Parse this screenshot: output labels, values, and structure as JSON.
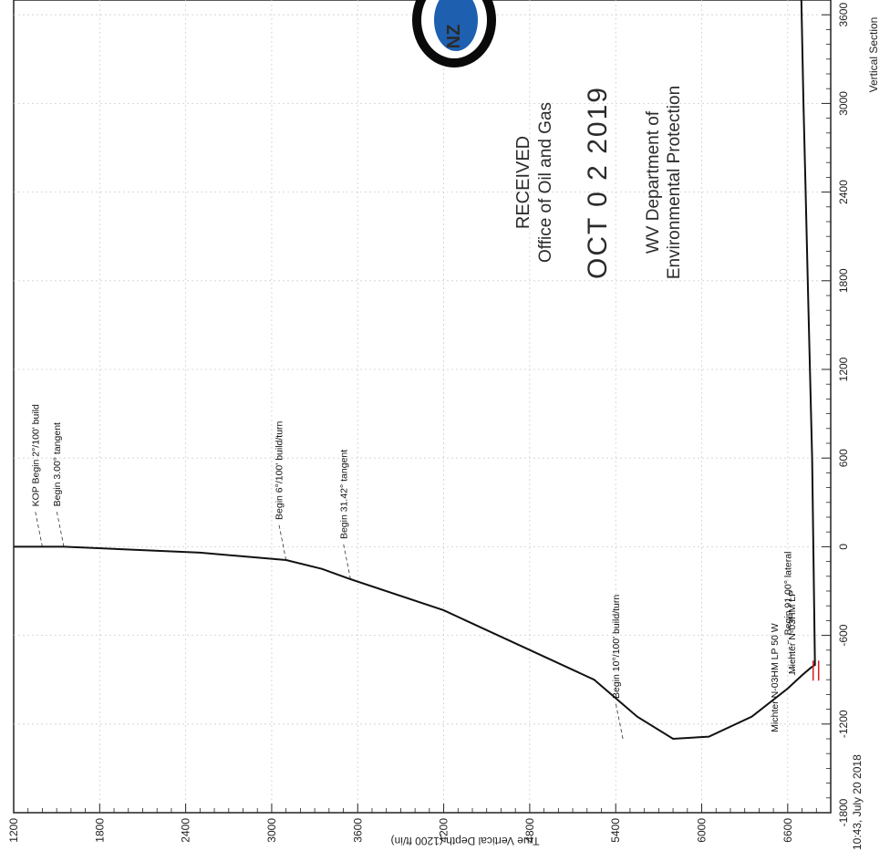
{
  "chart_data": {
    "type": "line",
    "orientation": "rotated-90-ccw",
    "xlabel": "Vertical Section",
    "ylabel": "True Vertical Depth (1200 ft/in)",
    "xlim": [
      -1800,
      3700
    ],
    "ylim": [
      1200,
      6900
    ],
    "x_ticks": [
      -1800,
      -1200,
      -600,
      0,
      600,
      1200,
      1800,
      2400,
      3000,
      3600
    ],
    "y_ticks": [
      1200,
      1800,
      2400,
      3000,
      3600,
      4200,
      4800,
      5400,
      6000,
      6600
    ],
    "x_tick_labels": [
      "-1800",
      "-1200",
      "-600",
      "0",
      "600",
      "1200",
      "1800",
      "2400",
      "3000",
      "3600"
    ],
    "y_tick_labels": [
      "1200",
      "1800",
      "2400",
      "3000",
      "3600",
      "4200",
      "4800",
      "5400",
      "6000",
      "6600"
    ],
    "grid": true,
    "series": [
      {
        "color": "#111111",
        "x": [
          0,
          0,
          0,
          -40,
          -90,
          -150,
          -220,
          -430,
          -900,
          -1150,
          -1300,
          -1285,
          -1150,
          -960,
          -870,
          -820,
          -800,
          600,
          1800,
          2400,
          3000,
          3700
        ],
        "y": [
          1200,
          1400,
          1550,
          2500,
          3100,
          3350,
          3550,
          4200,
          5250,
          5550,
          5800,
          6050,
          6350,
          6600,
          6700,
          6760,
          6790,
          6770,
          6740,
          6725,
          6710,
          6695
        ]
      }
    ],
    "annotations": [
      {
        "text": "KOP Begin 2°/100' build",
        "x": 0,
        "y": 1400
      },
      {
        "text": "Begin 3.00° tangent",
        "x": 0,
        "y": 1550
      },
      {
        "text": "Begin 6°/100' build/turn",
        "x": -90,
        "y": 3100
      },
      {
        "text": "Begin 31.42° tangent",
        "x": -220,
        "y": 3550
      },
      {
        "text": "Begin 10°/100' build/turn",
        "x": -1300,
        "y": 5450
      },
      {
        "text": "Begin 91.00° lateral",
        "x": -870,
        "y": 6650
      }
    ],
    "target_labels": [
      "Michter N-03HM LP 50 W",
      "Michter N-03HM LP"
    ]
  },
  "stamp": {
    "line1": "RECEIVED",
    "line2": "Office of Oil and Gas",
    "date": "OCT 0 2 2019",
    "line3": "WV Department of",
    "line4": "Environmental Protection"
  },
  "logo": {
    "text": "NZ"
  },
  "footer": {
    "timestamp": "10:43, July 20 2018"
  }
}
